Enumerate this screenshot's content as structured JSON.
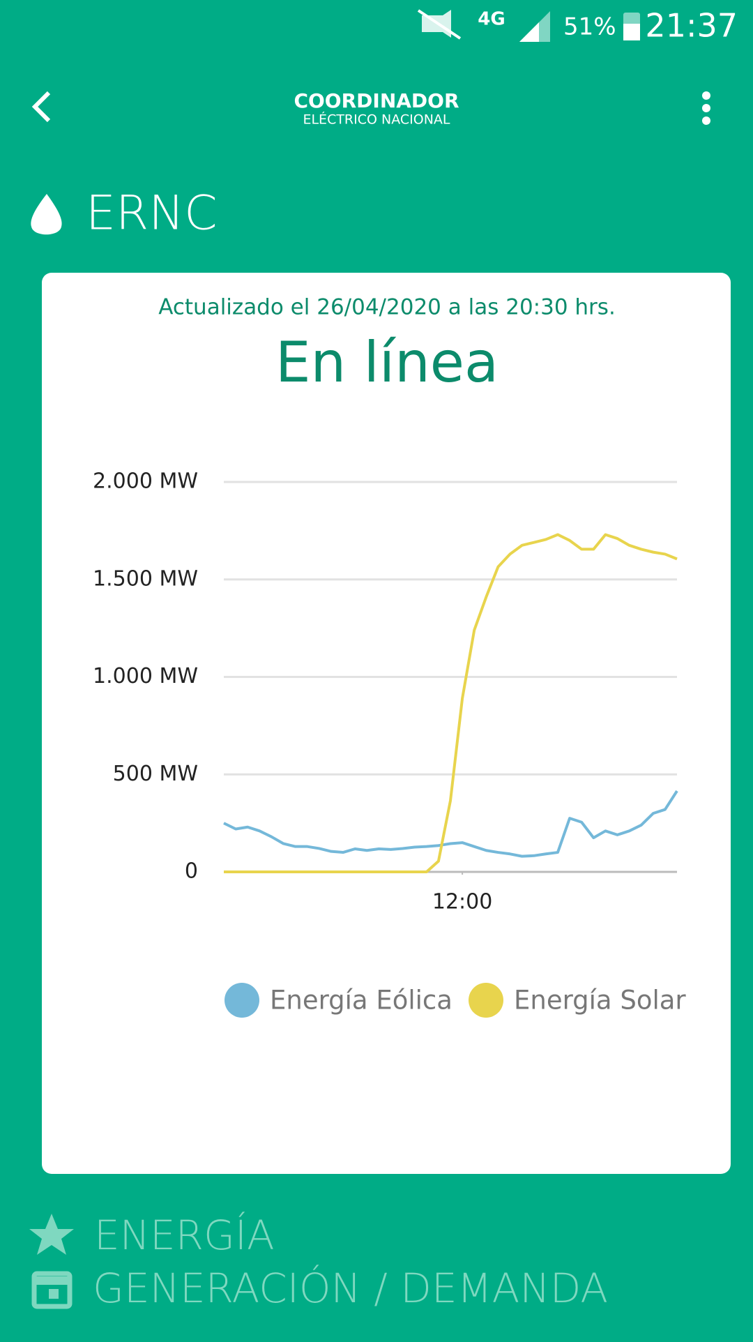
{
  "status_bar": {
    "network": "4G",
    "battery": "51%",
    "time": "21:37"
  },
  "header": {
    "title": "COORDINADOR",
    "subtitle": "ELÉCTRICO NACIONAL"
  },
  "section": {
    "title": "ERNC"
  },
  "card": {
    "updated": "Actualizado el 26/04/2020 a las 20:30 hrs.",
    "title": "En línea",
    "chart_data": {
      "type": "line",
      "x": [
        2,
        2.5,
        3,
        3.5,
        4,
        4.5,
        5,
        5.5,
        6,
        6.5,
        7,
        7.5,
        8,
        8.5,
        9,
        9.5,
        10,
        10.5,
        11,
        11.5,
        12,
        12.5,
        13,
        13.5,
        14,
        14.5,
        15,
        15.5,
        16,
        16.5,
        17,
        17.5,
        18,
        18.5,
        19,
        19.5,
        20,
        20.5,
        21
      ],
      "xlim": [
        2,
        21
      ],
      "xticks": [
        {
          "value": 12,
          "label": "12:00"
        }
      ],
      "ylim": [
        0,
        2000
      ],
      "yticks": [
        0,
        {
          "value": 500,
          "label": "500 MW"
        },
        {
          "value": 1000,
          "label": "1.000 MW"
        },
        {
          "value": 1500,
          "label": "1.500 MW"
        },
        {
          "value": 2000,
          "label": "2.000 MW"
        }
      ],
      "grid": true,
      "legend": "bottom",
      "series": [
        {
          "name": "Energía Eólica",
          "color": "#74b8d9",
          "values": [
            250,
            220,
            230,
            210,
            180,
            145,
            130,
            130,
            120,
            105,
            100,
            118,
            110,
            118,
            115,
            120,
            127,
            130,
            135,
            145,
            150,
            130,
            110,
            100,
            92,
            80,
            83,
            92,
            100,
            275,
            255,
            175,
            210,
            190,
            210,
            240,
            300,
            320,
            415
          ]
        },
        {
          "name": "Energía Solar",
          "color": "#e8d44d",
          "values": [
            0,
            0,
            0,
            0,
            0,
            0,
            0,
            0,
            0,
            0,
            0,
            0,
            0,
            0,
            0,
            0,
            0,
            0,
            55,
            365,
            890,
            1240,
            1410,
            1565,
            1630,
            1675,
            1690,
            1705,
            1730,
            1700,
            1655,
            1655,
            1730,
            1710,
            1675,
            1655,
            1640,
            1630,
            1605
          ]
        }
      ]
    }
  },
  "menu": {
    "items": [
      "ENERGÍA",
      "GENERACIÓN / DEMANDA"
    ]
  }
}
